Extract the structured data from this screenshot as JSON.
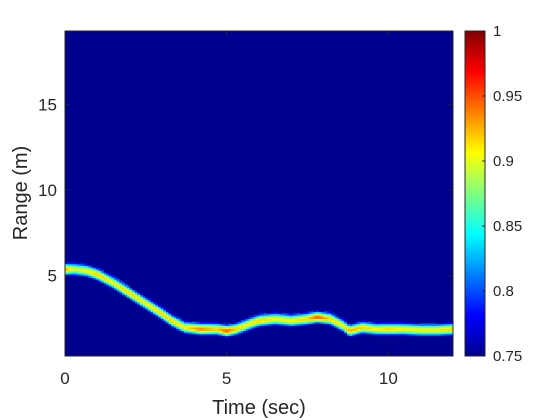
{
  "chart_data": {
    "type": "heatmap",
    "title": "",
    "xlabel": "Time (sec)",
    "ylabel": "Range (m)",
    "xlim": [
      0,
      12
    ],
    "ylim": [
      0.3,
      19.3
    ],
    "x_ticks": [
      0,
      5,
      10
    ],
    "y_ticks": [
      5,
      10,
      15
    ],
    "x_tick_labels": [
      "0",
      "5",
      "10"
    ],
    "y_tick_labels": [
      "5",
      "10",
      "15"
    ],
    "colormap": "jet",
    "background_color": "#00008f",
    "colorbar": {
      "range": [
        0.75,
        1
      ],
      "ticks": [
        0.75,
        0.8,
        0.85,
        0.9,
        0.95,
        1
      ],
      "tick_labels": [
        "0.75",
        "0.8",
        "0.85",
        "0.9",
        "0.95",
        "1"
      ]
    },
    "grid": false,
    "ridge": {
      "time": [
        0,
        0.3,
        0.7,
        1.0,
        1.5,
        2.0,
        2.5,
        3.0,
        3.3,
        3.7,
        4.2,
        4.7,
        5.0,
        5.3,
        5.7,
        6.0,
        6.5,
        7.0,
        7.5,
        7.8,
        8.2,
        8.6,
        8.8,
        9.2,
        9.6,
        10.0,
        10.5,
        11.0,
        11.5,
        12.0
      ],
      "range": [
        5.4,
        5.4,
        5.3,
        5.1,
        4.6,
        4.0,
        3.4,
        2.8,
        2.4,
        2.0,
        1.9,
        1.9,
        1.8,
        1.9,
        2.2,
        2.4,
        2.5,
        2.4,
        2.5,
        2.6,
        2.5,
        2.1,
        1.8,
        2.0,
        1.9,
        1.9,
        1.9,
        1.85,
        1.85,
        1.9
      ],
      "peak": [
        0.93,
        0.9,
        0.91,
        0.92,
        0.91,
        0.92,
        0.91,
        0.92,
        0.92,
        0.91,
        0.94,
        0.92,
        0.95,
        0.92,
        0.91,
        0.92,
        0.91,
        0.91,
        0.92,
        0.95,
        0.92,
        0.91,
        0.93,
        0.92,
        0.91,
        0.92,
        0.91,
        0.91,
        0.91,
        0.92
      ]
    }
  }
}
